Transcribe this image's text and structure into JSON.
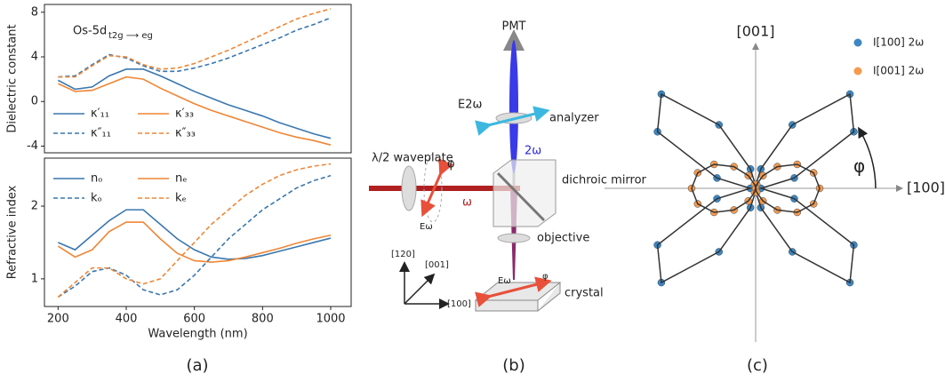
{
  "chart_data": [
    {
      "type": "line",
      "ylabel": "Dielectric constant",
      "annotation": "Os-5d",
      "annotation_sub": "t2g ⟶ eg",
      "x": [
        200,
        250,
        300,
        350,
        400,
        450,
        500,
        550,
        600,
        650,
        700,
        750,
        800,
        850,
        900,
        950,
        1000
      ],
      "xlim": [
        160,
        1060
      ],
      "ylim": [
        -4.6,
        8.7
      ],
      "yticks": [
        -4,
        0,
        4,
        8
      ],
      "series": [
        {
          "name": "κ′₁₁",
          "color": "#3a77ae",
          "style": "solid",
          "values": [
            1.9,
            1.1,
            1.3,
            2.3,
            2.9,
            2.9,
            2.3,
            1.6,
            0.9,
            0.3,
            -0.3,
            -0.8,
            -1.3,
            -1.9,
            -2.4,
            -2.9,
            -3.3
          ]
        },
        {
          "name": "κ′₃₃",
          "color": "#ef8636",
          "style": "solid",
          "values": [
            1.6,
            0.9,
            1.0,
            1.6,
            2.2,
            2.0,
            1.2,
            0.5,
            -0.2,
            -0.8,
            -1.3,
            -1.8,
            -2.3,
            -2.8,
            -3.2,
            -3.5,
            -3.9
          ]
        },
        {
          "name": "κ″₁₁",
          "color": "#3a77ae",
          "style": "dashed",
          "values": [
            2.2,
            2.3,
            3.3,
            4.2,
            3.9,
            3.2,
            2.7,
            2.7,
            3.0,
            3.4,
            3.9,
            4.5,
            5.1,
            5.7,
            6.4,
            6.9,
            7.5
          ]
        },
        {
          "name": "κ″₃₃",
          "color": "#ef8636",
          "style": "dashed",
          "values": [
            2.2,
            2.2,
            3.2,
            4.1,
            4.0,
            3.3,
            2.9,
            3.0,
            3.4,
            4.0,
            4.6,
            5.3,
            6.0,
            6.7,
            7.4,
            7.9,
            8.3
          ]
        }
      ]
    },
    {
      "type": "line",
      "ylabel": "Refractive index",
      "xlabel": "Wavelength (nm)",
      "x": [
        200,
        250,
        300,
        350,
        400,
        450,
        500,
        550,
        600,
        650,
        700,
        750,
        800,
        850,
        900,
        950,
        1000
      ],
      "xlim": [
        160,
        1060
      ],
      "xticks": [
        200,
        400,
        600,
        800,
        1000
      ],
      "ylim": [
        0.62,
        2.66
      ],
      "yticks": [
        1,
        2
      ],
      "series": [
        {
          "name": "nₒ",
          "color": "#3a77ae",
          "style": "solid",
          "values": [
            1.5,
            1.4,
            1.6,
            1.8,
            1.95,
            1.95,
            1.75,
            1.55,
            1.4,
            1.3,
            1.27,
            1.28,
            1.32,
            1.38,
            1.44,
            1.5,
            1.56
          ]
        },
        {
          "name": "nₑ",
          "color": "#ef8636",
          "style": "solid",
          "values": [
            1.45,
            1.3,
            1.4,
            1.65,
            1.78,
            1.78,
            1.55,
            1.35,
            1.25,
            1.23,
            1.25,
            1.3,
            1.36,
            1.42,
            1.49,
            1.55,
            1.6
          ]
        },
        {
          "name": "kₒ",
          "color": "#3a77ae",
          "style": "dashed",
          "values": [
            0.75,
            0.9,
            1.1,
            1.15,
            1.05,
            0.85,
            0.78,
            0.85,
            1.05,
            1.3,
            1.55,
            1.75,
            1.95,
            2.1,
            2.25,
            2.35,
            2.42
          ]
        },
        {
          "name": "kₑ",
          "color": "#ef8636",
          "style": "dashed",
          "values": [
            0.75,
            0.95,
            1.15,
            1.15,
            1.0,
            0.93,
            1.0,
            1.25,
            1.5,
            1.75,
            1.95,
            2.15,
            2.3,
            2.42,
            2.5,
            2.55,
            2.58
          ]
        }
      ]
    },
    {
      "type": "polar",
      "xlabel": "[100]",
      "ylabel": "[001]",
      "angle_label": "φ",
      "theta": [
        0,
        15,
        30,
        45,
        60,
        75,
        90,
        105,
        120,
        135,
        150,
        165,
        180,
        195,
        210,
        225,
        240,
        255,
        270,
        285,
        300,
        315,
        330,
        345
      ],
      "series": [
        {
          "name": "I[100] 2ω",
          "color": "#3d87c2",
          "values": [
            0.04,
            0.3,
            0.85,
            1.0,
            0.55,
            0.15,
            0.02,
            0.15,
            0.55,
            1.0,
            0.85,
            0.3,
            0.04,
            0.3,
            0.85,
            1.0,
            0.55,
            0.15,
            0.02,
            0.15,
            0.55,
            1.0,
            0.85,
            0.3
          ]
        },
        {
          "name": "I[001] 2ω",
          "color": "#f59a4e",
          "values": [
            0.48,
            0.45,
            0.36,
            0.23,
            0.11,
            0.03,
            0.0,
            0.03,
            0.11,
            0.23,
            0.36,
            0.45,
            0.48,
            0.45,
            0.36,
            0.23,
            0.11,
            0.03,
            0.0,
            0.03,
            0.11,
            0.23,
            0.36,
            0.45
          ]
        }
      ]
    }
  ],
  "diagram": {
    "labels": [
      "PMT",
      "analyzer",
      "E2ω",
      "λ/2 waveplate",
      "φ",
      "2ω",
      "dichroic mirror",
      "ω",
      "Eω",
      "objective",
      "crystal",
      "Eω",
      "φ",
      "[120]",
      "[001]",
      "[100]"
    ]
  },
  "captions": [
    "(a)",
    "(b)",
    "(c)"
  ]
}
